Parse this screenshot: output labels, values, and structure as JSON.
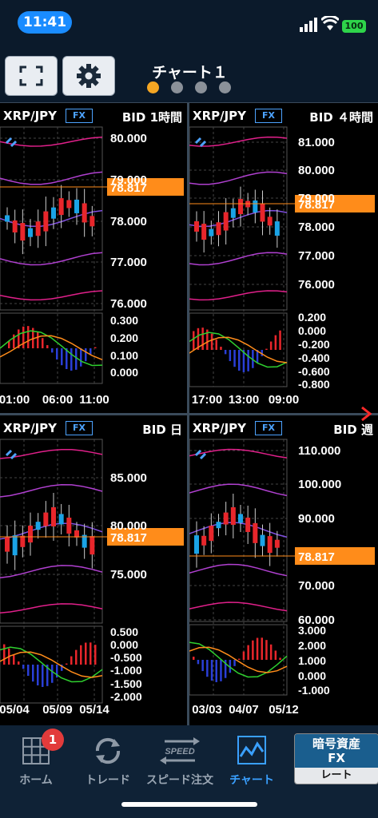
{
  "status_bar": {
    "time": "11:41",
    "battery": "100"
  },
  "header": {
    "title": "チャート１"
  },
  "page_indicator": {
    "pages": 4,
    "active": 0
  },
  "panels": [
    {
      "symbol": "XRP/JPY",
      "badge": "FX",
      "timeframe": "BID 1時間",
      "price": "78.817",
      "main_ticks": [
        "80.000",
        "79.000",
        "78.000",
        "77.000",
        "76.000"
      ],
      "sub_ticks": [
        "0.300",
        "0.200",
        "0.100",
        "0.000"
      ],
      "x_ticks": [
        "01:00",
        "06:00",
        "11:00"
      ]
    },
    {
      "symbol": "XRP/JPY",
      "badge": "FX",
      "timeframe": "BID ４時間",
      "price": "78.817",
      "main_ticks": [
        "81.000",
        "80.000",
        "79.000",
        "78.000",
        "77.000",
        "76.000"
      ],
      "sub_ticks": [
        "0.200",
        "0.000",
        "-0.200",
        "-0.400",
        "-0.600",
        "-0.800"
      ],
      "x_ticks": [
        "17:00",
        "13:00",
        "09:00"
      ]
    },
    {
      "symbol": "XRP/JPY",
      "badge": "FX",
      "timeframe": "BID 日",
      "price": "78.817",
      "main_ticks": [
        "85.000",
        "80.000",
        "75.000"
      ],
      "sub_ticks": [
        "0.500",
        "0.000",
        "-0.500",
        "-1.000",
        "-1.500",
        "-2.000"
      ],
      "x_ticks": [
        "05/04",
        "05/09",
        "05/14"
      ]
    },
    {
      "symbol": "XRP/JPY",
      "badge": "FX",
      "timeframe": "BID 週",
      "price": "78.817",
      "main_ticks": [
        "110.000",
        "100.000",
        "90.000",
        "70.000",
        "60.000"
      ],
      "sub_ticks": [
        "3.000",
        "2.000",
        "1.000",
        "0.000",
        "-1.000"
      ],
      "x_ticks": [
        "03/03",
        "04/07",
        "05/12"
      ]
    }
  ],
  "nav": {
    "home": "ホーム",
    "home_badge": "1",
    "trade": "トレード",
    "speed_order": "スピード注文",
    "speed_icon_text": "SPEED",
    "chart": "チャート",
    "rate_box": {
      "line1": "暗号資産",
      "line2": "FX",
      "rate": "レート"
    }
  },
  "colors": {
    "accent": "#1a8cff",
    "price_tag": "#ff8c1a",
    "up": "#e8262b",
    "down": "#1aa3e6",
    "nav_active": "#3aa0ff"
  }
}
